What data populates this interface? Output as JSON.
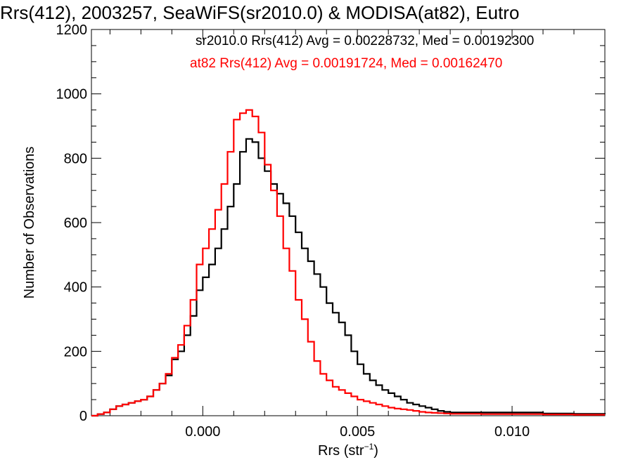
{
  "chart_data": {
    "type": "line",
    "title": "Rrs(412), 2003257, SeaWiFS(sr2010.0) & MODISA(at82), Eutro",
    "xlabel": "Rrs (str",
    "xlabel_sup": "−1",
    "xlabel_end": ")",
    "ylabel": "Number of Observations",
    "xlim": [
      -0.0036,
      0.013
    ],
    "ylim": [
      0,
      1200
    ],
    "x_ticks": [
      0.0,
      0.005,
      0.01
    ],
    "x_tick_labels": [
      "0.000",
      "0.005",
      "0.010"
    ],
    "y_ticks": [
      0,
      200,
      400,
      600,
      800,
      1000,
      1200
    ],
    "y_tick_labels": [
      "0",
      "200",
      "400",
      "600",
      "800",
      "1000",
      "1200"
    ],
    "annotations": [
      {
        "text": "sr2010.0 Rrs(412) Avg = 0.00228732, Med = 0.00192300",
        "color": "#000000"
      },
      {
        "text": "at82 Rrs(412) Avg = 0.00191724, Med = 0.00162470",
        "color": "#ff0000"
      }
    ],
    "series": [
      {
        "color": "#000000",
        "x": [
          -0.0036,
          -0.0034,
          -0.0032,
          -0.003,
          -0.0028,
          -0.0026,
          -0.0024,
          -0.0022,
          -0.002,
          -0.0018,
          -0.0016,
          -0.0014,
          -0.0012,
          -0.001,
          -0.0008,
          -0.0006,
          -0.0004,
          -0.0002,
          0.0,
          0.0002,
          0.0004,
          0.0006,
          0.0008,
          0.001,
          0.0012,
          0.0014,
          0.0016,
          0.0018,
          0.002,
          0.0022,
          0.0024,
          0.0026,
          0.0028,
          0.003,
          0.0032,
          0.0034,
          0.0036,
          0.0038,
          0.004,
          0.0042,
          0.0044,
          0.0046,
          0.0048,
          0.005,
          0.0052,
          0.0054,
          0.0056,
          0.0058,
          0.006,
          0.0062,
          0.0064,
          0.0066,
          0.0068,
          0.007,
          0.0072,
          0.0074,
          0.0076,
          0.0078,
          0.008,
          0.009,
          0.01,
          0.011,
          0.012,
          0.013
        ],
        "y": [
          0,
          5,
          10,
          20,
          30,
          35,
          40,
          45,
          50,
          60,
          80,
          100,
          125,
          175,
          200,
          250,
          310,
          390,
          430,
          470,
          520,
          580,
          650,
          720,
          820,
          860,
          850,
          800,
          760,
          720,
          690,
          660,
          620,
          570,
          520,
          480,
          440,
          400,
          350,
          320,
          290,
          250,
          200,
          160,
          130,
          110,
          95,
          80,
          70,
          60,
          50,
          40,
          35,
          30,
          25,
          20,
          15,
          12,
          10,
          10,
          10,
          7,
          6,
          5
        ]
      },
      {
        "color": "#ff0000",
        "x": [
          -0.0036,
          -0.0034,
          -0.0032,
          -0.003,
          -0.0028,
          -0.0026,
          -0.0024,
          -0.0022,
          -0.002,
          -0.0018,
          -0.0016,
          -0.0014,
          -0.0012,
          -0.001,
          -0.0008,
          -0.0006,
          -0.0004,
          -0.0002,
          0.0,
          0.0002,
          0.0004,
          0.0006,
          0.0008,
          0.001,
          0.0012,
          0.0014,
          0.0016,
          0.0018,
          0.002,
          0.0022,
          0.0024,
          0.0026,
          0.0028,
          0.003,
          0.0032,
          0.0034,
          0.0036,
          0.0038,
          0.004,
          0.0042,
          0.0044,
          0.0046,
          0.0048,
          0.005,
          0.0052,
          0.0054,
          0.0056,
          0.0058,
          0.006,
          0.0062,
          0.0064,
          0.0066,
          0.0068,
          0.007,
          0.0072,
          0.0074,
          0.0076,
          0.0078,
          0.008,
          0.009,
          0.01,
          0.011,
          0.012,
          0.013
        ],
        "y": [
          0,
          5,
          10,
          20,
          30,
          35,
          40,
          45,
          50,
          60,
          80,
          100,
          130,
          180,
          220,
          280,
          360,
          470,
          520,
          580,
          640,
          720,
          820,
          920,
          940,
          950,
          930,
          880,
          780,
          700,
          620,
          520,
          450,
          360,
          300,
          230,
          170,
          130,
          110,
          90,
          80,
          70,
          60,
          50,
          45,
          40,
          35,
          30,
          25,
          22,
          20,
          18,
          15,
          12,
          10,
          9,
          8,
          7,
          6,
          5,
          5,
          4,
          3,
          3
        ]
      }
    ]
  }
}
